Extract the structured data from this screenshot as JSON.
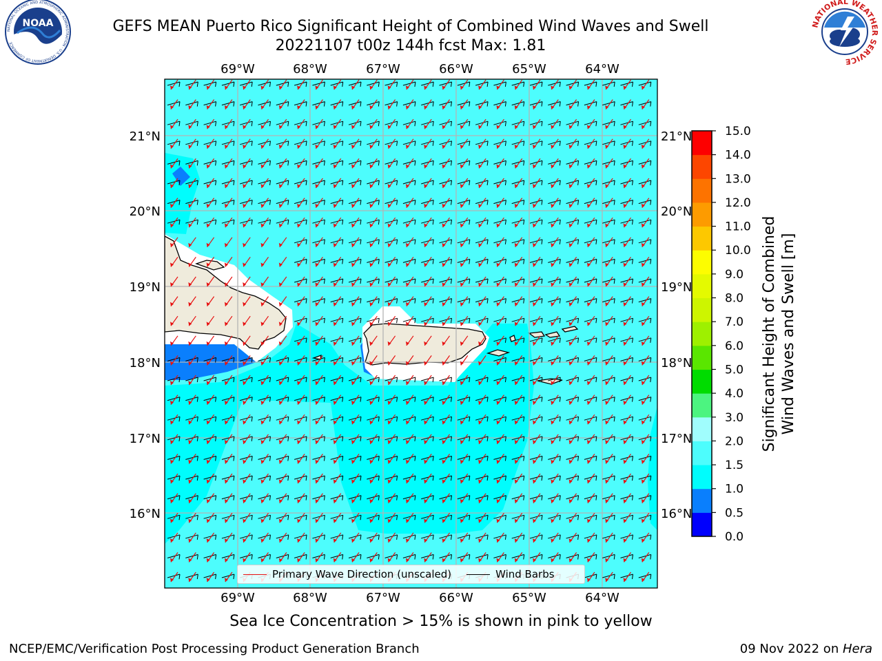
{
  "header": {
    "title_line1": "GEFS MEAN Puerto Rico Significant Height of Combined Wind Waves and Swell",
    "title_line2": "20221107 t00z 144h fcst   Max: 1.81"
  },
  "logos": {
    "left": {
      "text": "NOAA",
      "ring_text": "NATIONAL OCEANIC AND ATMOSPHERIC ADMINISTRATION · U.S. DEPARTMENT OF COMMERCE",
      "color": "#1a3f8c"
    },
    "right": {
      "ring_text": "NATIONAL WEATHER SERVICE",
      "color": "#d01c1c"
    }
  },
  "map": {
    "lon_labels": [
      "69°W",
      "68°W",
      "67°W",
      "66°W",
      "65°W",
      "64°W"
    ],
    "lat_labels": [
      "21°N",
      "20°N",
      "19°N",
      "18°N",
      "17°N",
      "16°N"
    ],
    "ocean_color": "#4dfdfd",
    "calm_color": "#00fdfd",
    "low_color": "#0a7ffd",
    "land_color": "#efebdc",
    "arrow_color": "#e81010",
    "barb_color": "#000000"
  },
  "colorbar": {
    "label_line1": "Significant Height of Combined",
    "label_line2": "Wind Waves and Swell [m]",
    "ticks": [
      "0.0",
      "0.5",
      "1.0",
      "1.5",
      "2.0",
      "3.0",
      "4.0",
      "5.0",
      "6.0",
      "7.0",
      "8.0",
      "9.0",
      "10.0",
      "11.0",
      "12.0",
      "13.0",
      "14.0",
      "15.0"
    ],
    "colors": [
      "#0000fd",
      "#0a7ffd",
      "#00fdfd",
      "#4dfdfd",
      "#a0fdfd",
      "#4cf480",
      "#00dc00",
      "#5ae600",
      "#9ef000",
      "#cdf500",
      "#e4fa00",
      "#fdfd00",
      "#fdc800",
      "#fd9b00",
      "#fd7300",
      "#fd4600",
      "#fd0000"
    ]
  },
  "legend": {
    "arrow_label": "Primary Wave Direction (unscaled)",
    "barb_label": "Wind Barbs"
  },
  "footer": {
    "note": "Sea Ice Concentration > 15% is shown in pink to yellow",
    "credit_left": "NCEP/EMC/Verification Post Processing Product Generation Branch",
    "credit_right_prefix": "09 Nov 2022 on ",
    "credit_right_host": "Hera"
  }
}
